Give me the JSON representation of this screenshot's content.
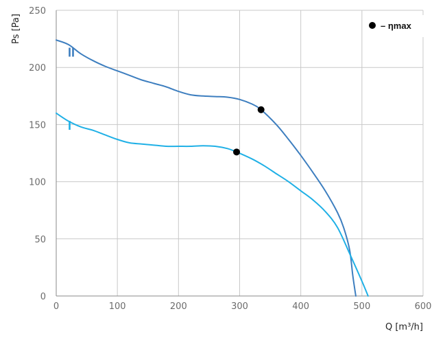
{
  "chart_data": {
    "type": "line",
    "xlabel": "Q [m³/h]",
    "ylabel": "Ps [Pa]",
    "xlim": [
      0,
      600
    ],
    "ylim": [
      0,
      250
    ],
    "xticks": [
      0,
      100,
      200,
      300,
      400,
      500,
      600
    ],
    "yticks": [
      0,
      50,
      100,
      150,
      200,
      250
    ],
    "grid": true,
    "legend": {
      "marker_label": "– ηmax",
      "position": "top-right"
    },
    "series": [
      {
        "name": "II",
        "color": "#3d7ebf",
        "points": [
          [
            0,
            224
          ],
          [
            20,
            220
          ],
          [
            40,
            212
          ],
          [
            60,
            206
          ],
          [
            80,
            201
          ],
          [
            100,
            197
          ],
          [
            120,
            193
          ],
          [
            140,
            189
          ],
          [
            160,
            186
          ],
          [
            180,
            183
          ],
          [
            200,
            179
          ],
          [
            220,
            176
          ],
          [
            240,
            175
          ],
          [
            260,
            174.5
          ],
          [
            280,
            174
          ],
          [
            300,
            172
          ],
          [
            320,
            168
          ],
          [
            335,
            163
          ],
          [
            360,
            150
          ],
          [
            380,
            137
          ],
          [
            400,
            123
          ],
          [
            420,
            108
          ],
          [
            440,
            92
          ],
          [
            460,
            73
          ],
          [
            470,
            60
          ],
          [
            480,
            40
          ],
          [
            485,
            18
          ],
          [
            490,
            0
          ]
        ],
        "eta_max": [
          335,
          163
        ]
      },
      {
        "name": "I",
        "color": "#1fb0e6",
        "points": [
          [
            0,
            160
          ],
          [
            20,
            153
          ],
          [
            40,
            148
          ],
          [
            60,
            145
          ],
          [
            80,
            141
          ],
          [
            100,
            137
          ],
          [
            120,
            134
          ],
          [
            140,
            133
          ],
          [
            160,
            132
          ],
          [
            180,
            131
          ],
          [
            200,
            131
          ],
          [
            220,
            131
          ],
          [
            240,
            131.5
          ],
          [
            260,
            131
          ],
          [
            280,
            129
          ],
          [
            295,
            126
          ],
          [
            320,
            120
          ],
          [
            340,
            114
          ],
          [
            360,
            107
          ],
          [
            380,
            100
          ],
          [
            400,
            92
          ],
          [
            420,
            84
          ],
          [
            440,
            74
          ],
          [
            460,
            60
          ],
          [
            480,
            37
          ],
          [
            500,
            13
          ],
          [
            510,
            0
          ]
        ],
        "eta_max": [
          295,
          126
        ]
      }
    ]
  }
}
